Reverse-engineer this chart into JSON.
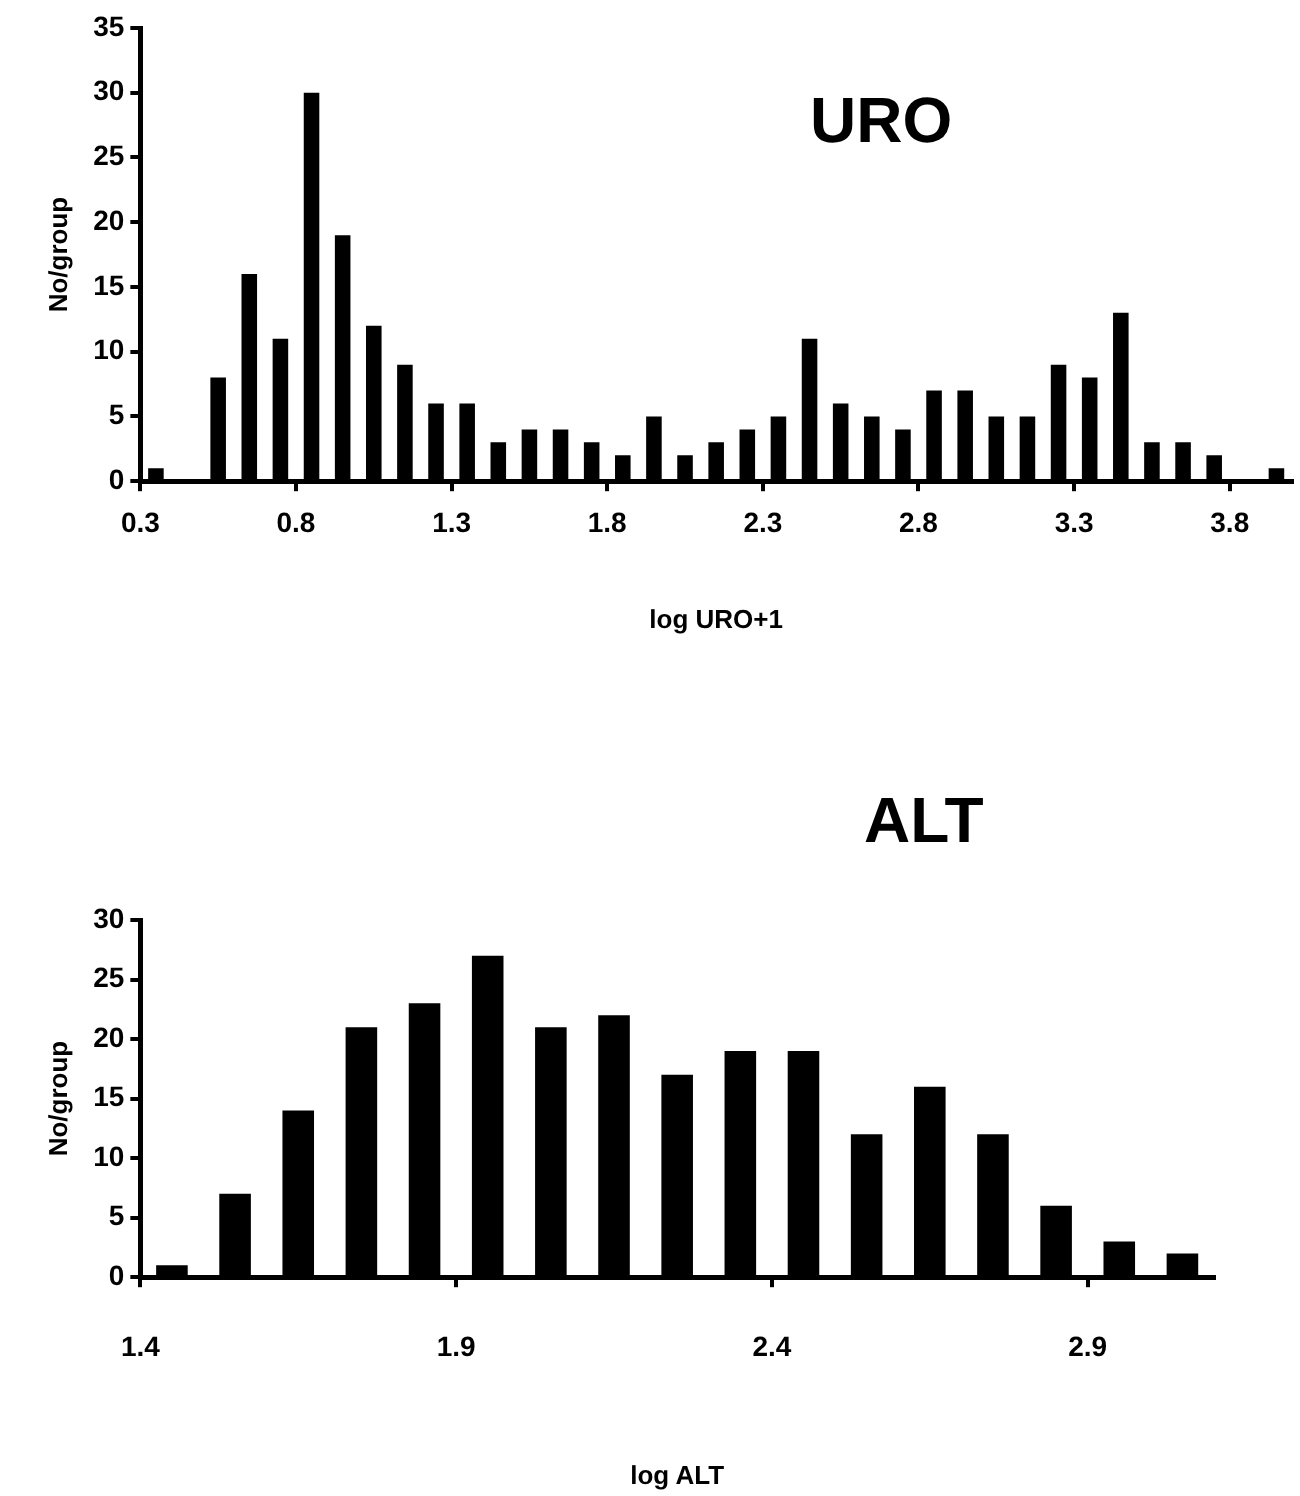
{
  "chart_data": [
    {
      "type": "histogram",
      "title": "URO",
      "xlabel": "log URO+1",
      "ylabel": "No/group",
      "color": "#000000",
      "bins": [
        0.3,
        0.4,
        0.5,
        0.6,
        0.7,
        0.8,
        0.9,
        1.0,
        1.1,
        1.2,
        1.3,
        1.4,
        1.5,
        1.6,
        1.7,
        1.8,
        1.9,
        2.0,
        2.1,
        2.2,
        2.3,
        2.4,
        2.5,
        2.6,
        2.7,
        2.8,
        2.9,
        3.0,
        3.1,
        3.2,
        3.3,
        3.4,
        3.5,
        3.6,
        3.7,
        3.8,
        3.9,
        4.0
      ],
      "values": [
        1,
        0,
        8,
        16,
        11,
        30,
        19,
        12,
        9,
        6,
        6,
        3,
        4,
        4,
        3,
        2,
        5,
        2,
        3,
        4,
        5,
        11,
        6,
        5,
        4,
        7,
        7,
        5,
        5,
        9,
        8,
        13,
        3,
        3,
        2,
        0,
        1
      ],
      "xlim": [
        0.3,
        4.0
      ],
      "xticks": [
        0.3,
        0.8,
        1.3,
        1.8,
        2.3,
        2.8,
        3.3,
        3.8
      ],
      "ylim": [
        0,
        35
      ],
      "yticks": [
        0,
        5,
        10,
        15,
        20,
        25,
        30,
        35
      ],
      "grid": false
    },
    {
      "type": "histogram",
      "title": "ALT",
      "xlabel": "log ALT",
      "ylabel": "No/group",
      "color": "#000000",
      "bins": [
        1.4,
        1.5,
        1.6,
        1.7,
        1.8,
        1.9,
        2.0,
        2.1,
        2.2,
        2.3,
        2.4,
        2.5,
        2.6,
        2.7,
        2.8,
        2.9,
        3.0,
        3.1
      ],
      "values": [
        1,
        7,
        14,
        21,
        23,
        27,
        21,
        22,
        17,
        19,
        19,
        12,
        16,
        12,
        6,
        3,
        2
      ],
      "xlim": [
        1.4,
        3.1
      ],
      "xticks": [
        1.4,
        1.9,
        2.4,
        2.9
      ],
      "ylim": [
        0,
        30
      ],
      "yticks": [
        0,
        5,
        10,
        15,
        20,
        25,
        30
      ],
      "grid": false
    }
  ]
}
